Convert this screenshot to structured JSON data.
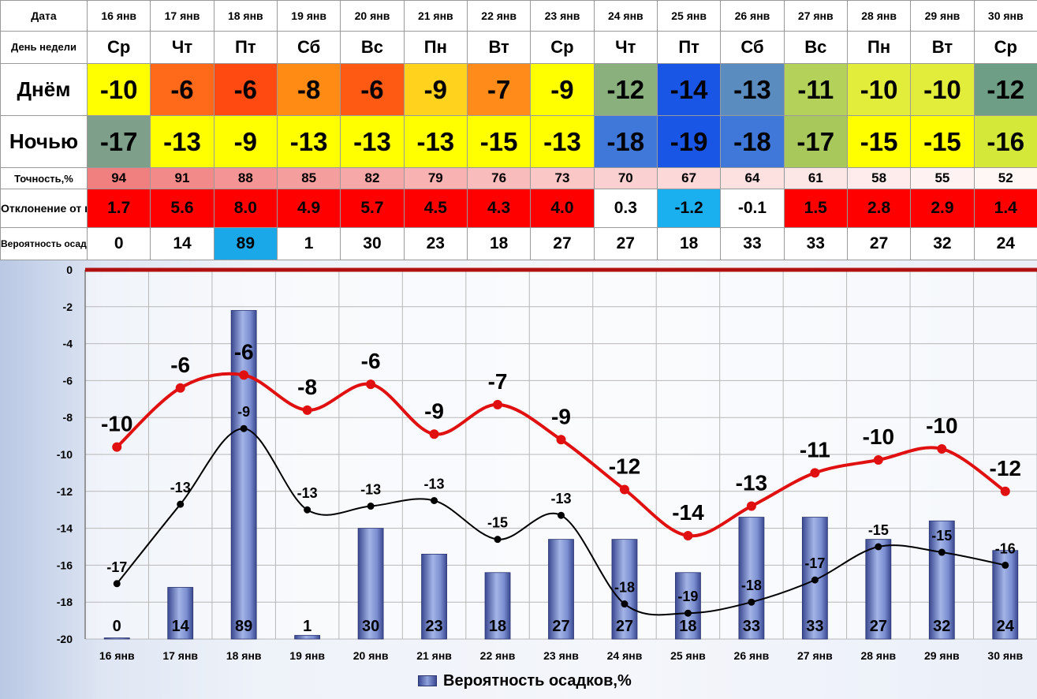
{
  "table": {
    "labels": {
      "date": "Дата",
      "weekday": "День недели",
      "day": "Днём",
      "night": "Ночью",
      "accuracy": "Точность,%",
      "deviation": "Отклонение от нормы",
      "precip": "Вероятность осадков,%"
    },
    "dates": [
      "16 янв",
      "17 янв",
      "18 янв",
      "19 янв",
      "20 янв",
      "21 янв",
      "22 янв",
      "23 янв",
      "24 янв",
      "25 янв",
      "26 янв",
      "27 янв",
      "28 янв",
      "29 янв",
      "30 янв"
    ],
    "weekdays": [
      "Ср",
      "Чт",
      "Пт",
      "Сб",
      "Вс",
      "Пн",
      "Вт",
      "Ср",
      "Чт",
      "Пт",
      "Сб",
      "Вс",
      "Пн",
      "Вт",
      "Ср"
    ],
    "day": [
      "-10",
      "-6",
      "-6",
      "-8",
      "-6",
      "-9",
      "-7",
      "-9",
      "-12",
      "-14",
      "-13",
      "-11",
      "-10",
      "-10",
      "-12"
    ],
    "night": [
      "-17",
      "-13",
      "-9",
      "-13",
      "-13",
      "-13",
      "-15",
      "-13",
      "-18",
      "-19",
      "-18",
      "-17",
      "-15",
      "-15",
      "-16"
    ],
    "accuracy": [
      "94",
      "91",
      "88",
      "85",
      "82",
      "79",
      "76",
      "73",
      "70",
      "67",
      "64",
      "61",
      "58",
      "55",
      "52"
    ],
    "deviation": [
      "1.7",
      "5.6",
      "8.0",
      "4.9",
      "5.7",
      "4.5",
      "4.3",
      "4.0",
      "0.3",
      "-1.2",
      "-0.1",
      "1.5",
      "2.8",
      "2.9",
      "1.4"
    ],
    "precip": [
      "0",
      "14",
      "89",
      "1",
      "30",
      "23",
      "18",
      "27",
      "27",
      "18",
      "33",
      "33",
      "27",
      "32",
      "24"
    ]
  },
  "colors": {
    "day": [
      "#ffff00",
      "#ff6a1a",
      "#ff4a12",
      "#ff8a14",
      "#ff5a14",
      "#ffd21e",
      "#ff8c1a",
      "#ffff00",
      "#8ab07e",
      "#1a56e6",
      "#5a8cbf",
      "#b4d25a",
      "#e2ec3a",
      "#e2ec3a",
      "#6e9e86"
    ],
    "night": [
      "#7ea08a",
      "#ffff00",
      "#ffff00",
      "#ffff00",
      "#ffff00",
      "#ffff00",
      "#ffff00",
      "#ffff00",
      "#3f78d8",
      "#1a56e6",
      "#3f78d8",
      "#a8c85c",
      "#ffff00",
      "#ffff00",
      "#d4e83a"
    ],
    "accuracy": [
      "#f08080",
      "#f28a8a",
      "#f49494",
      "#f59e9e",
      "#f6a8a8",
      "#f8b2b2",
      "#f9bcbc",
      "#fac6c6",
      "#fbd0d0",
      "#fcd8d8",
      "#fde0e0",
      "#fde6e6",
      "#feecec",
      "#fff2f2",
      "#fff6f6"
    ],
    "deviation": [
      "#ff0000",
      "#ff0000",
      "#ff0000",
      "#ff0000",
      "#ff0000",
      "#ff0000",
      "#ff0000",
      "#ff0000",
      "#ffffff",
      "#1ab0f0",
      "#ffffff",
      "#ff0000",
      "#ff0000",
      "#ff0000",
      "#ff0000"
    ],
    "precip": [
      "#ffffff",
      "#ffffff",
      "#1aa8e8",
      "#ffffff",
      "#ffffff",
      "#ffffff",
      "#ffffff",
      "#ffffff",
      "#ffffff",
      "#ffffff",
      "#ffffff",
      "#ffffff",
      "#ffffff",
      "#ffffff",
      "#ffffff"
    ],
    "day_line": "#e01010",
    "night_line": "#000000",
    "zero_line": "#b01010"
  },
  "chart_data": {
    "type": "bar",
    "categories": [
      "16 янв",
      "17 янв",
      "18 янв",
      "19 янв",
      "20 янв",
      "21 янв",
      "22 янв",
      "23 янв",
      "24 янв",
      "25 янв",
      "26 янв",
      "27 янв",
      "28 янв",
      "29 янв",
      "30 янв"
    ],
    "ylim": [
      -20,
      0
    ],
    "yticks": [
      0,
      -2,
      -4,
      -6,
      -8,
      -10,
      -12,
      -14,
      -16,
      -18,
      -20
    ],
    "grid": true,
    "legend_position": "bottom",
    "bar_series": {
      "name": "Вероятность осадков,%",
      "values": [
        0,
        14,
        89,
        1,
        30,
        23,
        18,
        27,
        27,
        18,
        33,
        33,
        27,
        32,
        24
      ],
      "labels": [
        "0",
        "14",
        "89",
        "1",
        "30",
        "23",
        "18",
        "27",
        "27",
        "18",
        "33",
        "33",
        "27",
        "32",
        "24"
      ]
    },
    "lines": [
      {
        "values": [
          -9.6,
          -6.4,
          -5.7,
          -7.6,
          -6.2,
          -8.9,
          -7.3,
          -9.2,
          -11.9,
          -14.4,
          -12.8,
          -11.0,
          -10.3,
          -9.7,
          -12.0
        ],
        "labels": [
          "-10",
          "-6",
          "-6",
          "-8",
          "-6",
          "-9",
          "-7",
          "-9",
          "-12",
          "-14",
          "-13",
          "-11",
          "-10",
          "-10",
          "-12"
        ]
      },
      {
        "values": [
          -17.0,
          -12.7,
          -8.6,
          -13.0,
          -12.8,
          -12.5,
          -14.6,
          -13.3,
          -18.1,
          -18.6,
          -18.0,
          -16.8,
          -15.0,
          -15.3,
          -16.0
        ],
        "labels": [
          "-17",
          "-13",
          "-9",
          "-13",
          "-13",
          "-13",
          "-15",
          "-13",
          "-18",
          "-19",
          "-18",
          "-17",
          "-15",
          "-15",
          "-16"
        ]
      }
    ]
  }
}
